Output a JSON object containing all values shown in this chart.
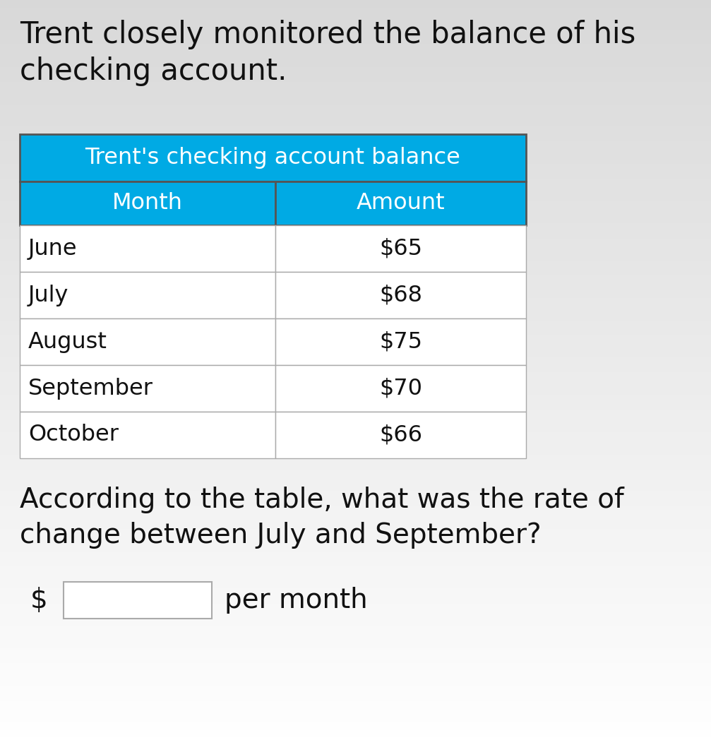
{
  "title_text": "Trent closely monitored the balance of his\nchecking account.",
  "table_title": "Trent's checking account balance",
  "col_headers": [
    "Month",
    "Amount"
  ],
  "rows": [
    [
      "June",
      "$65"
    ],
    [
      "July",
      "$68"
    ],
    [
      "August",
      "$75"
    ],
    [
      "September",
      "$70"
    ],
    [
      "October",
      "$66"
    ]
  ],
  "question_text": "According to the table, what was the rate of\nchange between July and September?",
  "answer_prefix": "$",
  "answer_suffix": "per month",
  "bg_color_top": "#d0d0d8",
  "bg_color_bottom": "#ffffff",
  "table_header_bg": "#00aae4",
  "table_col_header_bg": "#00aae4",
  "table_border_color": "#aaaaaa",
  "table_row_bg": "#ffffff",
  "header_text_color": "#ffffff",
  "body_text_color": "#111111",
  "title_font_size": 30,
  "table_title_font_size": 23,
  "col_header_font_size": 23,
  "row_font_size": 23,
  "question_font_size": 28,
  "answer_font_size": 28,
  "fig_width": 10.07,
  "fig_height": 10.55,
  "dpi": 100
}
